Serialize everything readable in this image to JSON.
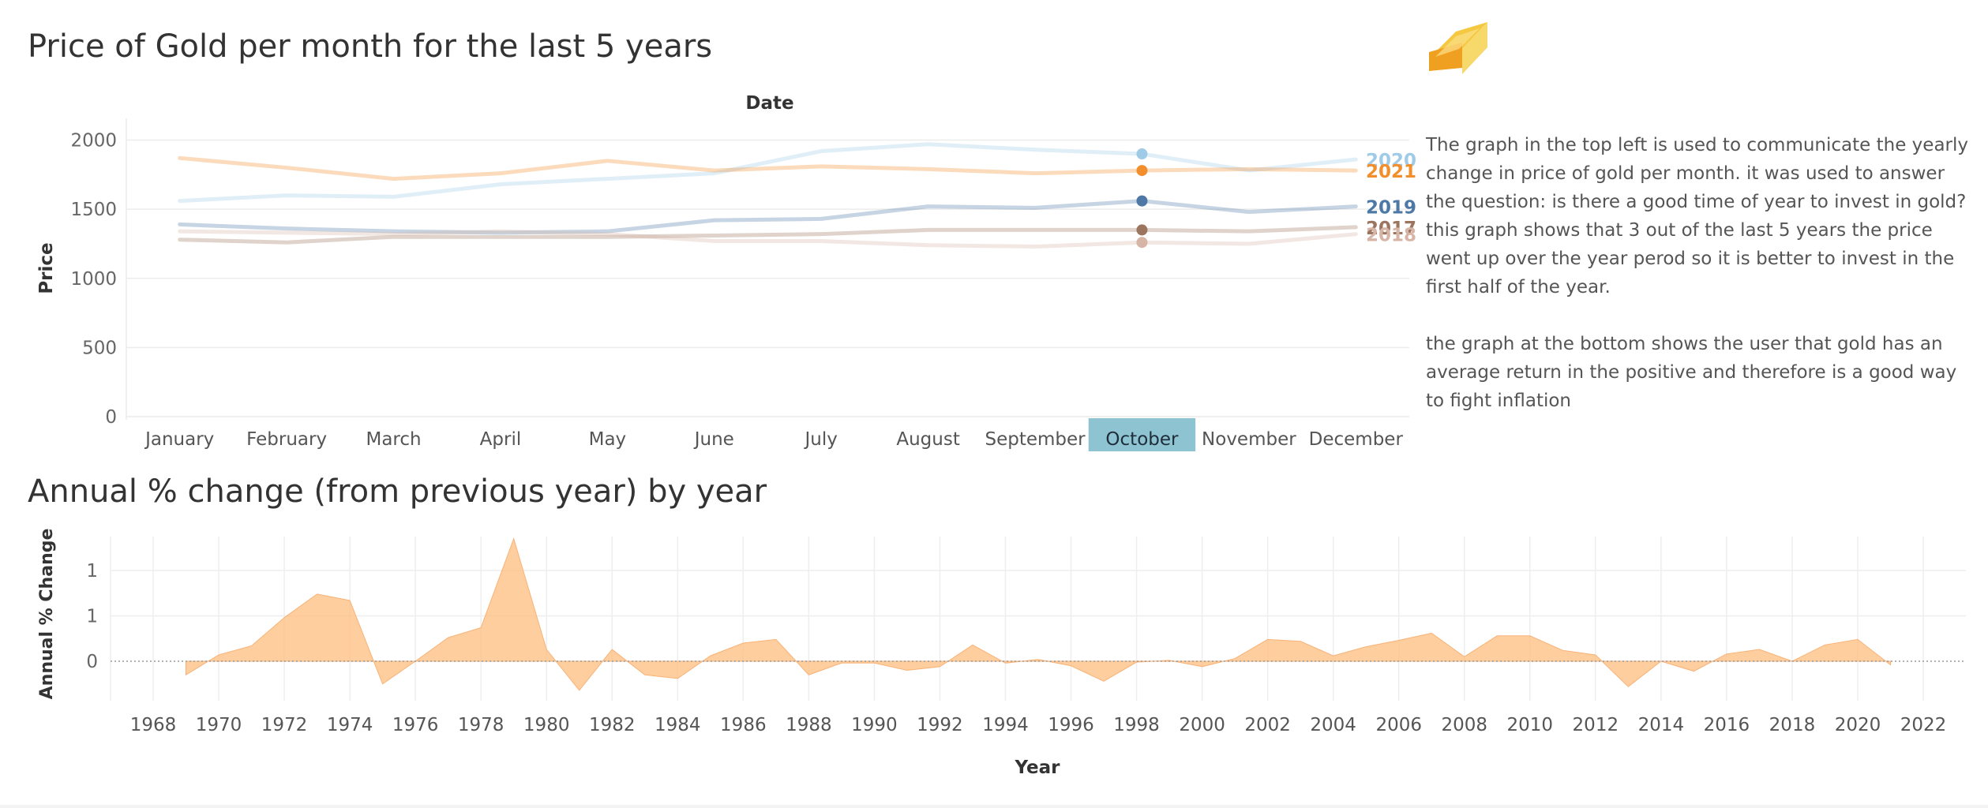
{
  "chart_data": [
    {
      "type": "line",
      "title": "Price of Gold per month for the last 5 years",
      "xlabel": "Date",
      "ylabel": "Price",
      "categories": [
        "January",
        "February",
        "March",
        "April",
        "May",
        "June",
        "July",
        "August",
        "September",
        "October",
        "November",
        "December"
      ],
      "ylim": [
        0,
        2100
      ],
      "yticks": [
        0,
        500,
        1000,
        1500,
        2000
      ],
      "highlight_category": "October",
      "series": [
        {
          "name": "2020",
          "color": "#a0cbe8",
          "values": [
            1560,
            1600,
            1590,
            1680,
            1720,
            1760,
            1920,
            1970,
            1930,
            1900,
            1780,
            1860
          ]
        },
        {
          "name": "2021",
          "color": "#f28e2b",
          "values": [
            1870,
            1800,
            1720,
            1760,
            1850,
            1780,
            1810,
            1790,
            1760,
            1780,
            1790,
            1780
          ]
        },
        {
          "name": "2019",
          "color": "#4e79a7",
          "values": [
            1390,
            1360,
            1340,
            1330,
            1340,
            1420,
            1430,
            1520,
            1510,
            1560,
            1480,
            1520
          ]
        },
        {
          "name": "2017",
          "color": "#9c755f",
          "values": [
            1280,
            1260,
            1300,
            1300,
            1300,
            1310,
            1320,
            1350,
            1350,
            1350,
            1340,
            1370
          ]
        },
        {
          "name": "2018",
          "color": "#d7b5a6",
          "values": [
            1340,
            1330,
            1320,
            1340,
            1320,
            1270,
            1270,
            1240,
            1230,
            1260,
            1250,
            1320
          ]
        }
      ]
    },
    {
      "type": "area",
      "title": "Annual % change (from previous year) by year",
      "xlabel": "Year",
      "ylabel": "Annual % Change",
      "color": "#ffbe7d",
      "xticks": [
        1968,
        1970,
        1972,
        1974,
        1976,
        1978,
        1980,
        1982,
        1984,
        1986,
        1988,
        1990,
        1992,
        1994,
        1996,
        1998,
        2000,
        2002,
        2004,
        2006,
        2008,
        2010,
        2012,
        2014,
        2016,
        2018,
        2020,
        2022
      ],
      "ytick_labels": [
        "1",
        "1",
        "0"
      ],
      "yticks": [
        1.0,
        0.5,
        0.0
      ],
      "ylim": [
        -0.35,
        1.35
      ],
      "x": [
        1969,
        1970,
        1971,
        1972,
        1973,
        1974,
        1975,
        1976,
        1977,
        1978,
        1979,
        1980,
        1981,
        1982,
        1983,
        1984,
        1985,
        1986,
        1987,
        1988,
        1989,
        1990,
        1991,
        1992,
        1993,
        1994,
        1995,
        1996,
        1997,
        1998,
        1999,
        2000,
        2001,
        2002,
        2003,
        2004,
        2005,
        2006,
        2007,
        2008,
        2009,
        2010,
        2011,
        2012,
        2013,
        2014,
        2015,
        2016,
        2017,
        2018,
        2019,
        2020,
        2021
      ],
      "values": [
        -0.15,
        0.07,
        0.17,
        0.48,
        0.74,
        0.67,
        -0.25,
        0.0,
        0.26,
        0.37,
        1.35,
        0.13,
        -0.32,
        0.13,
        -0.15,
        -0.19,
        0.06,
        0.2,
        0.24,
        -0.15,
        -0.02,
        -0.02,
        -0.1,
        -0.06,
        0.18,
        -0.02,
        0.02,
        -0.05,
        -0.22,
        -0.01,
        0.01,
        -0.06,
        0.03,
        0.24,
        0.22,
        0.06,
        0.16,
        0.23,
        0.31,
        0.05,
        0.28,
        0.28,
        0.12,
        0.07,
        -0.28,
        0.0,
        -0.11,
        0.08,
        0.13,
        0.0,
        0.18,
        0.24,
        -0.04
      ]
    }
  ],
  "description": {
    "paragraph1": "The graph in the top left is used to communicate the yearly change in price of gold per month. it was used to answer the question: is there a good time of year to invest in gold? this graph shows that 3 out of the last 5 years the price went up over the year perod so it is better to invest in the first half of the year.",
    "paragraph2": "the graph at the bottom shows the user that gold has an average return in the positive and therefore is a good way to fight inflation"
  },
  "icons": {
    "gold": "gold-bar-icon"
  }
}
